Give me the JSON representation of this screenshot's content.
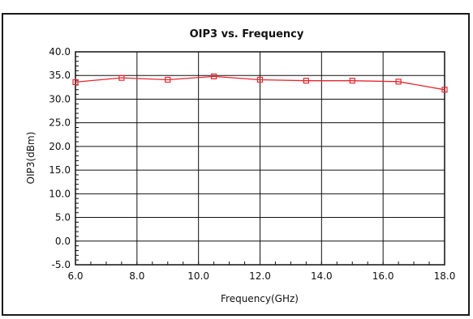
{
  "chart_data": {
    "type": "line",
    "title": "OIP3 vs. Frequency",
    "xlabel": "Frequency(GHz)",
    "ylabel": "OIP3(dBm)",
    "xlim": [
      6.0,
      18.0
    ],
    "ylim": [
      -5.0,
      40.0
    ],
    "x_ticks": [
      "6.0",
      "8.0",
      "10.0",
      "12.0",
      "14.0",
      "16.0",
      "18.0"
    ],
    "y_ticks": [
      "40.0",
      "35.0",
      "30.0",
      "25.0",
      "20.0",
      "15.0",
      "10.0",
      "5.0",
      "0.0",
      "-5.0"
    ],
    "grid": true,
    "series": [
      {
        "color": "#e8262e",
        "marker": "square",
        "x": [
          6.0,
          7.5,
          9.0,
          10.5,
          12.0,
          13.5,
          15.0,
          16.5,
          18.0
        ],
        "y": [
          33.6,
          34.5,
          34.1,
          34.8,
          34.1,
          33.9,
          33.9,
          33.7,
          32.0
        ]
      }
    ]
  }
}
